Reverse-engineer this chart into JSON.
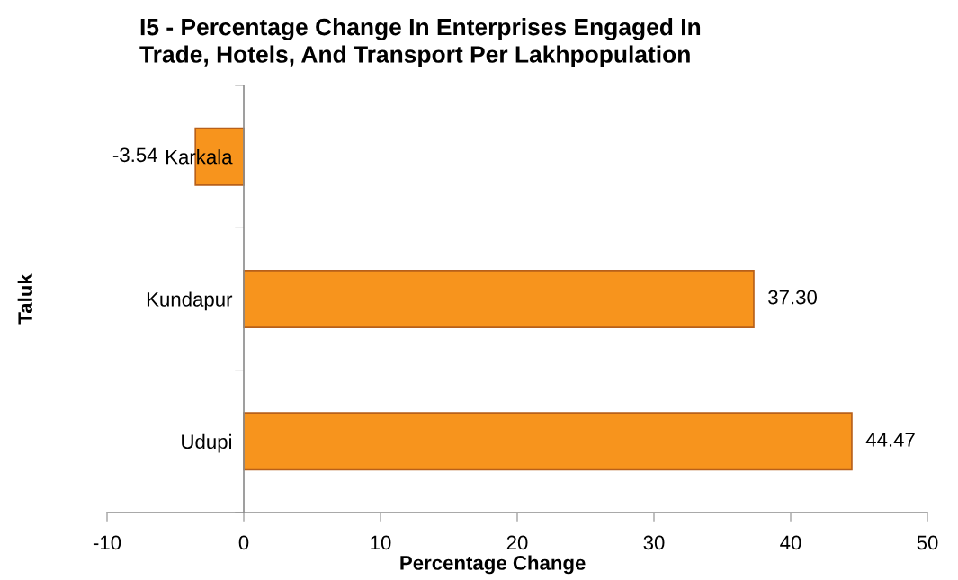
{
  "chart_data": {
    "type": "bar",
    "orientation": "horizontal",
    "title": "I5 - Percentage Change In Enterprises Engaged In\nTrade, Hotels, And Transport Per Lakhpopulation",
    "xlabel": "Percentage Change",
    "ylabel": "Taluk",
    "categories": [
      "Karkala",
      "Kundapur",
      "Udupi"
    ],
    "values": [
      -3.54,
      37.3,
      44.47
    ],
    "value_labels": [
      "-3.54",
      "37.30",
      "44.47"
    ],
    "color": "#f7941d",
    "xlim": [
      -10,
      50
    ],
    "xticks": [
      -10,
      0,
      10,
      20,
      30,
      40,
      50
    ]
  }
}
